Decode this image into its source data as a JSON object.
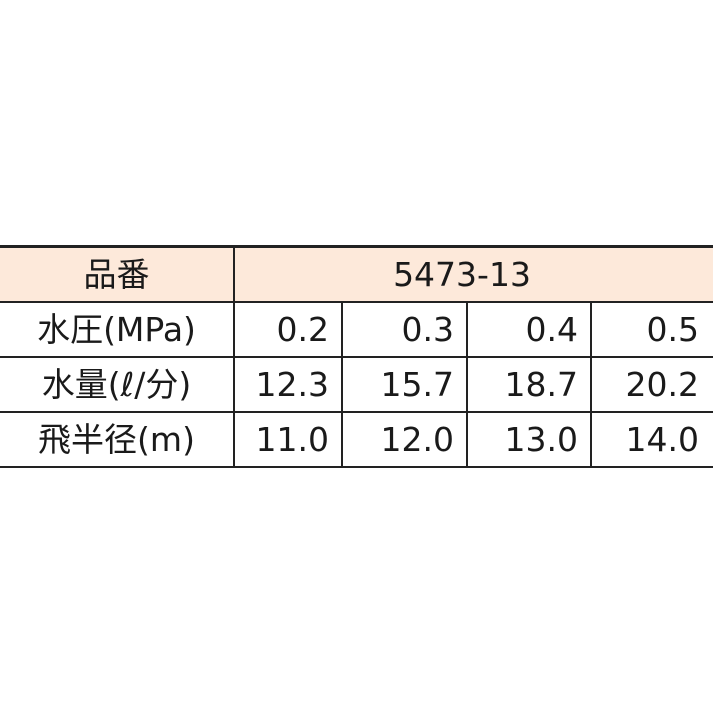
{
  "header": {
    "label": "品番",
    "model": "5473-13"
  },
  "rows": [
    {
      "label": "水圧(MPa)",
      "values": [
        "0.2",
        "0.3",
        "0.4",
        "0.5"
      ]
    },
    {
      "label": "水量(ℓ/分)",
      "values": [
        "12.3",
        "15.7",
        "18.7",
        "20.2"
      ]
    },
    {
      "label": "飛半径(m)",
      "values": [
        "11.0",
        "12.0",
        "13.0",
        "14.0"
      ]
    }
  ],
  "colors": {
    "header_bg": "#fde9da",
    "border": "#222222"
  }
}
